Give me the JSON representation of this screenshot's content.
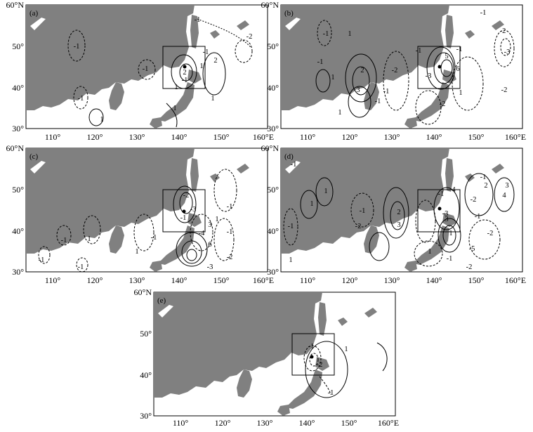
{
  "panels": [
    {
      "label": "(a)",
      "lat_ticks": [
        "60°N",
        "50°",
        "40°",
        "30°"
      ],
      "lon_ticks": [
        "110°",
        "120°",
        "130°",
        "140°",
        "150°",
        "160°E"
      ],
      "contour_labels": [
        "-1",
        "-1",
        "-1",
        "-1",
        "-1",
        "-1",
        "-2",
        "1",
        "2",
        "2",
        "1",
        "1",
        "1",
        "1"
      ]
    },
    {
      "label": "(b)",
      "lat_ticks": [
        "60°N",
        "50°",
        "40°",
        "30°"
      ],
      "lon_ticks": [
        "110°",
        "120°",
        "130°",
        "140°",
        "150°",
        "160°E"
      ],
      "contour_labels": [
        "-1",
        "-1",
        "-1",
        "1",
        "1",
        "1",
        "2",
        "3",
        "-2",
        "-1",
        "-2",
        "-1",
        "-3",
        "5",
        "6",
        "-1",
        "-2",
        "-3",
        "-2",
        "1",
        "-1"
      ]
    },
    {
      "label": "(c)",
      "lat_ticks": [
        "60°N",
        "50°",
        "40°",
        "30°"
      ],
      "lon_ticks": [
        "110°",
        "120°",
        "130°",
        "140°",
        "150°",
        "160°E"
      ],
      "contour_labels": [
        "-1",
        "-1",
        "-1",
        "-1",
        "1",
        "-2",
        "-3",
        "-1",
        "-1",
        "-4",
        "3",
        "-1",
        "6",
        "-2",
        "-3",
        "1",
        "1"
      ]
    },
    {
      "label": "(d)",
      "lat_ticks": [
        "60°N",
        "50°",
        "40°",
        "30°"
      ],
      "lon_ticks": [
        "110°",
        "120°",
        "130°",
        "140°",
        "150°",
        "160°E"
      ],
      "contour_labels": [
        "-1",
        "1",
        "-1",
        "1",
        "1",
        "-1",
        "-2",
        "2",
        "3",
        "-1",
        "-3",
        "3",
        "4",
        "-2",
        "-1",
        "2",
        "3",
        "4",
        "1",
        "-2",
        "-1",
        "-5",
        "-1",
        "1",
        "-2"
      ]
    },
    {
      "label": "(e)",
      "lat_ticks": [
        "60°N",
        "50°",
        "40°",
        "30°"
      ],
      "lon_ticks": [
        "110°",
        "120°",
        "130°",
        "140°",
        "150°",
        "160°E"
      ],
      "contour_labels": [
        "-1",
        "-2",
        "1",
        "-1"
      ]
    }
  ],
  "colors": {
    "land": "#808080",
    "ocean": "#ffffff",
    "contour": "#000000"
  }
}
